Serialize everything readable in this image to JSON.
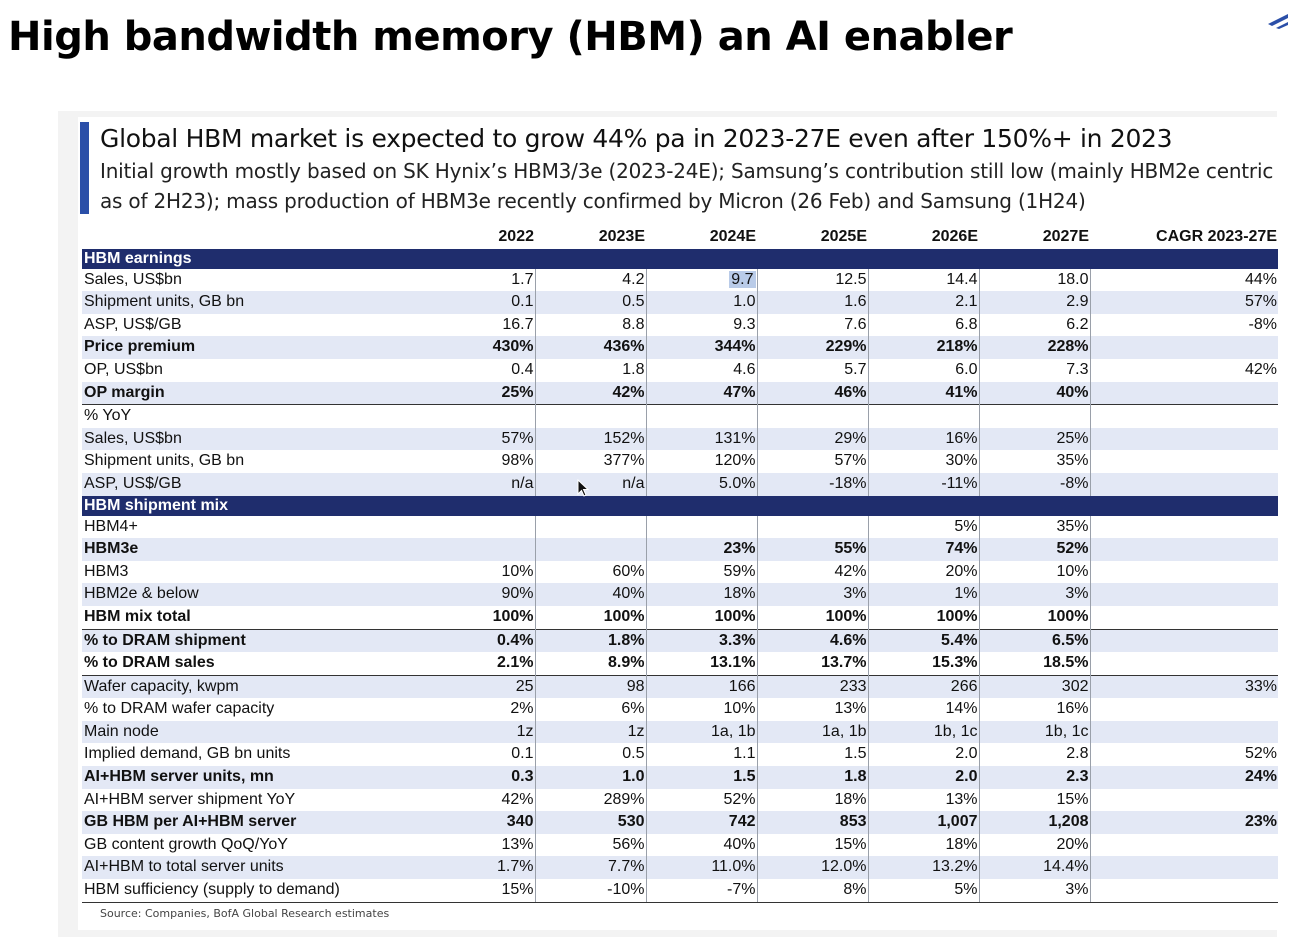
{
  "slide": {
    "title": "High bandwidth memory (HBM) an AI enabler"
  },
  "exhibit": {
    "headline": "Global HBM market is expected to grow 44% pa in 2023-27E even after 150%+ in 2023",
    "subline_1": "Initial growth mostly based on SK Hynix’s HBM3/3e (2023-24E); Samsung’s contribution still low (mainly HBM2e centric",
    "subline_2": "as of 2H23); mass production of HBM3e recently confirmed by Micron (26 Feb) and Samsung (1H24)",
    "source": "Source: Companies, BofA Global Research estimates"
  },
  "colors": {
    "section_band": "#1f2d6d",
    "row_shade": "#e3e8f5",
    "accent_bar": "#2b4fa8",
    "highlight": "#b9cbe8"
  },
  "table": {
    "headers": [
      "",
      "2022",
      "2023E",
      "2024E",
      "2025E",
      "2026E",
      "2027E",
      "CAGR 2023-27E"
    ],
    "rows": [
      {
        "section": true,
        "label": "HBM earnings"
      },
      {
        "label": "Sales, US$bn",
        "values": [
          "1.7",
          "4.2",
          "9.7",
          "12.5",
          "14.4",
          "18.0"
        ],
        "cagr": "44%",
        "shade": false,
        "bold": false,
        "highlight_col": 2
      },
      {
        "label": "Shipment units, GB bn",
        "values": [
          "0.1",
          "0.5",
          "1.0",
          "1.6",
          "2.1",
          "2.9"
        ],
        "cagr": "57%",
        "shade": true,
        "bold": false
      },
      {
        "label": "ASP, US$/GB",
        "values": [
          "16.7",
          "8.8",
          "9.3",
          "7.6",
          "6.8",
          "6.2"
        ],
        "cagr": "-8%",
        "shade": false,
        "bold": false
      },
      {
        "label": "Price premium",
        "values": [
          "430%",
          "436%",
          "344%",
          "229%",
          "218%",
          "228%"
        ],
        "cagr": "",
        "shade": true,
        "bold": true
      },
      {
        "label": "OP, US$bn",
        "values": [
          "0.4",
          "1.8",
          "4.6",
          "5.7",
          "6.0",
          "7.3"
        ],
        "cagr": "42%",
        "shade": false,
        "bold": false
      },
      {
        "label": "OP margin",
        "values": [
          "25%",
          "42%",
          "47%",
          "46%",
          "41%",
          "40%"
        ],
        "cagr": "",
        "shade": true,
        "bold": true
      },
      {
        "label": "% YoY",
        "values": [
          "",
          "",
          "",
          "",
          "",
          ""
        ],
        "cagr": "",
        "shade": false,
        "bold": false,
        "rule": true
      },
      {
        "label": "Sales, US$bn",
        "values": [
          "57%",
          "152%",
          "131%",
          "29%",
          "16%",
          "25%"
        ],
        "cagr": "",
        "shade": true,
        "bold": false
      },
      {
        "label": "Shipment units, GB bn",
        "values": [
          "98%",
          "377%",
          "120%",
          "57%",
          "30%",
          "35%"
        ],
        "cagr": "",
        "shade": false,
        "bold": false
      },
      {
        "label": "ASP, US$/GB",
        "values": [
          "n/a",
          "n/a",
          "5.0%",
          "-18%",
          "-11%",
          "-8%"
        ],
        "cagr": "",
        "shade": true,
        "bold": false
      },
      {
        "section": true,
        "label": "HBM shipment mix"
      },
      {
        "label": "HBM4+",
        "values": [
          "",
          "",
          "",
          "",
          "5%",
          "35%"
        ],
        "cagr": "",
        "shade": false,
        "bold": false
      },
      {
        "label": "HBM3e",
        "values": [
          "",
          "",
          "23%",
          "55%",
          "74%",
          "52%"
        ],
        "cagr": "",
        "shade": true,
        "bold": true
      },
      {
        "label": "HBM3",
        "values": [
          "10%",
          "60%",
          "59%",
          "42%",
          "20%",
          "10%"
        ],
        "cagr": "",
        "shade": false,
        "bold": false
      },
      {
        "label": "HBM2e & below",
        "values": [
          "90%",
          "40%",
          "18%",
          "3%",
          "1%",
          "3%"
        ],
        "cagr": "",
        "shade": true,
        "bold": false
      },
      {
        "label": "HBM mix total",
        "values": [
          "100%",
          "100%",
          "100%",
          "100%",
          "100%",
          "100%"
        ],
        "cagr": "",
        "shade": false,
        "bold": true
      },
      {
        "label": "% to DRAM shipment",
        "values": [
          "0.4%",
          "1.8%",
          "3.3%",
          "4.6%",
          "5.4%",
          "6.5%"
        ],
        "cagr": "",
        "shade": true,
        "bold": true,
        "rule": true
      },
      {
        "label": "% to DRAM sales",
        "values": [
          "2.1%",
          "8.9%",
          "13.1%",
          "13.7%",
          "15.3%",
          "18.5%"
        ],
        "cagr": "",
        "shade": false,
        "bold": true
      },
      {
        "label": "Wafer capacity, kwpm",
        "values": [
          "25",
          "98",
          "166",
          "233",
          "266",
          "302"
        ],
        "cagr": "33%",
        "shade": true,
        "bold": false,
        "rule": true
      },
      {
        "label": "% to DRAM wafer capacity",
        "values": [
          "2%",
          "6%",
          "10%",
          "13%",
          "14%",
          "16%"
        ],
        "cagr": "",
        "shade": false,
        "bold": false
      },
      {
        "label": "Main node",
        "values": [
          "1z",
          "1z",
          "1a, 1b",
          "1a, 1b",
          "1b, 1c",
          "1b, 1c"
        ],
        "cagr": "",
        "shade": true,
        "bold": false
      },
      {
        "label": "Implied demand, GB bn units",
        "values": [
          "0.1",
          "0.5",
          "1.1",
          "1.5",
          "2.0",
          "2.8"
        ],
        "cagr": "52%",
        "shade": false,
        "bold": false
      },
      {
        "label": "AI+HBM server units, mn",
        "values": [
          "0.3",
          "1.0",
          "1.5",
          "1.8",
          "2.0",
          "2.3"
        ],
        "cagr": "24%",
        "shade": true,
        "bold": true
      },
      {
        "label": "AI+HBM server shipment YoY",
        "values": [
          "42%",
          "289%",
          "52%",
          "18%",
          "13%",
          "15%"
        ],
        "cagr": "",
        "shade": false,
        "bold": false
      },
      {
        "label": "GB HBM per AI+HBM server",
        "values": [
          "340",
          "530",
          "742",
          "853",
          "1,007",
          "1,208"
        ],
        "cagr": "23%",
        "shade": true,
        "bold": true
      },
      {
        "label": "GB content growth QoQ/YoY",
        "values": [
          "13%",
          "56%",
          "40%",
          "15%",
          "18%",
          "20%"
        ],
        "cagr": "",
        "shade": false,
        "bold": false
      },
      {
        "label": "AI+HBM to total server units",
        "values": [
          "1.7%",
          "7.7%",
          "11.0%",
          "12.0%",
          "13.2%",
          "14.4%"
        ],
        "cagr": "",
        "shade": true,
        "bold": false
      },
      {
        "label": "HBM sufficiency (supply to demand)",
        "values": [
          "15%",
          "-10%",
          "-7%",
          "8%",
          "5%",
          "3%"
        ],
        "cagr": "",
        "shade": false,
        "bold": false,
        "last": true
      }
    ]
  }
}
